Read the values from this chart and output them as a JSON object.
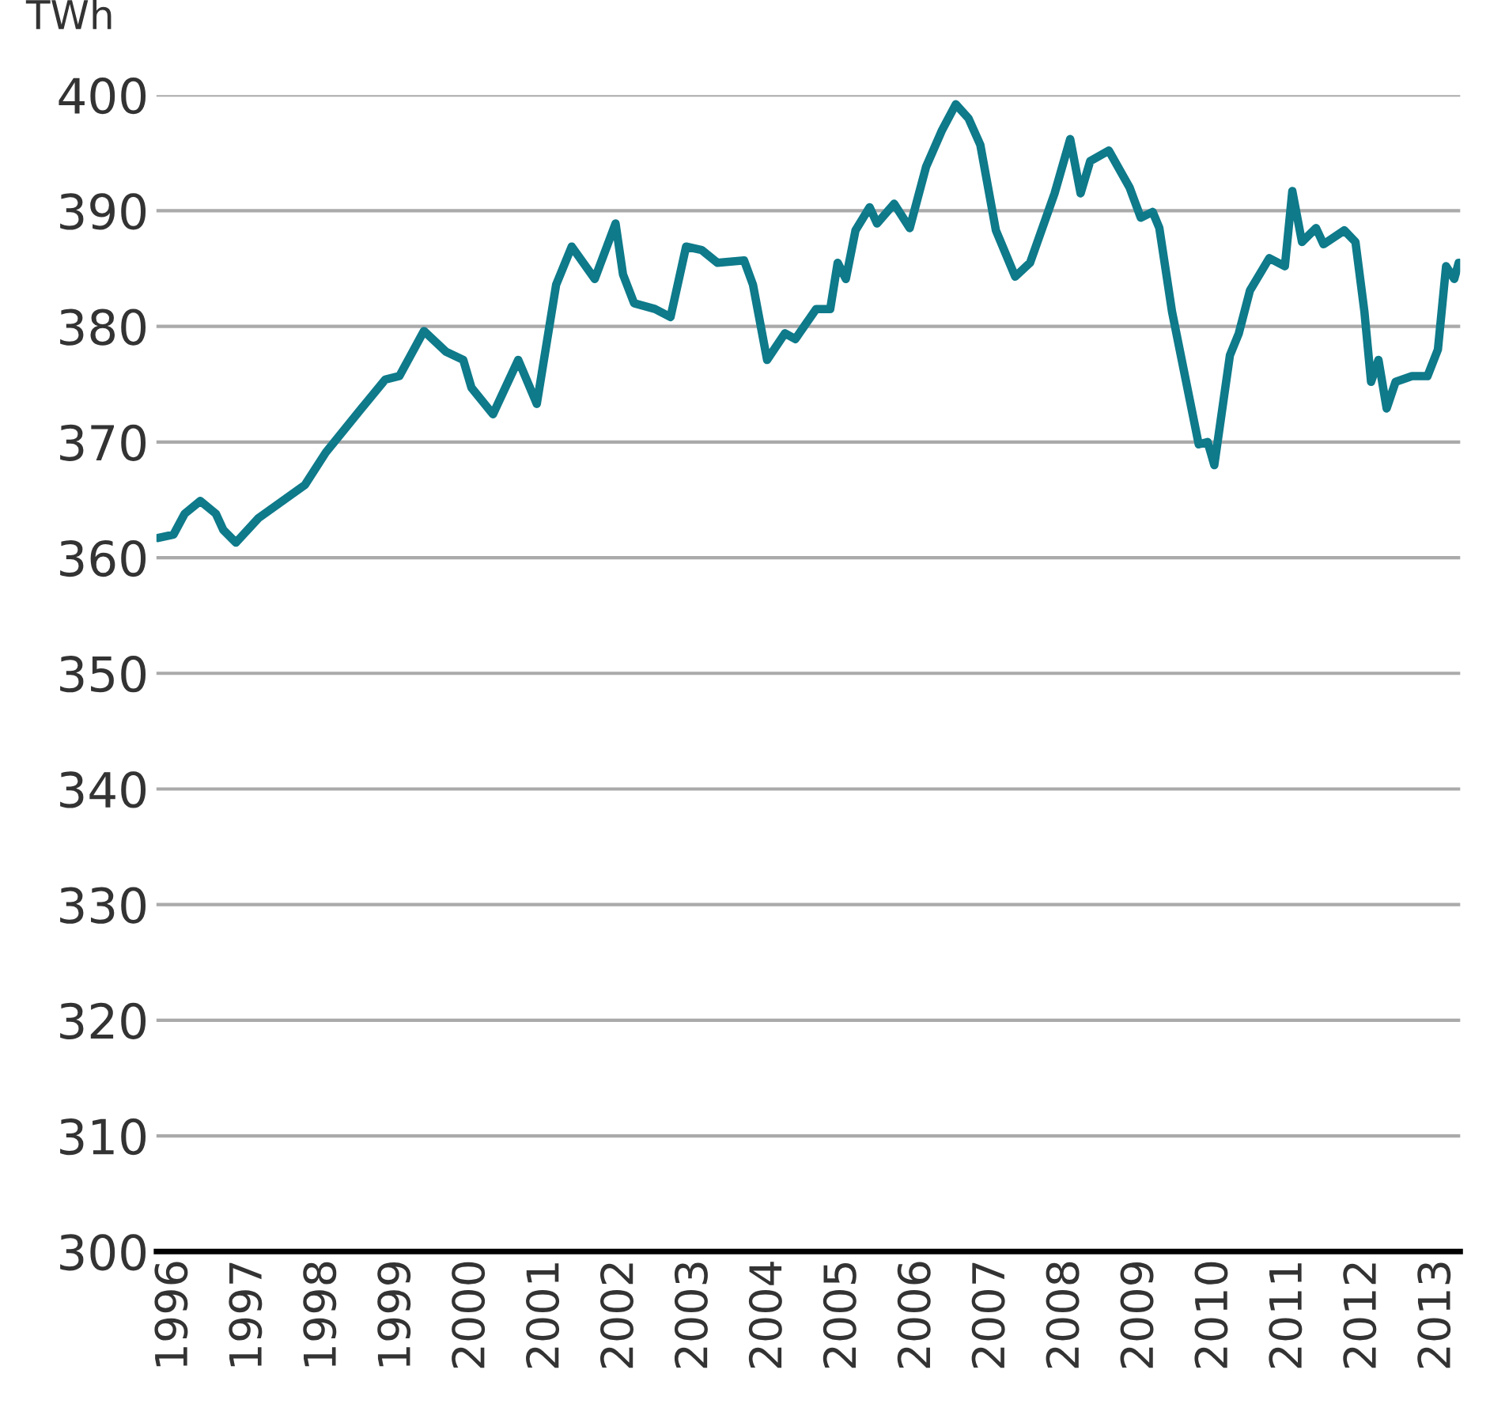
{
  "chart_data": {
    "type": "line",
    "ylabel": "TWh",
    "x": [
      1995.77,
      1995.98,
      1996.13,
      1996.34,
      1996.55,
      1996.65,
      1996.82,
      1997.12,
      1997.75,
      1998.03,
      1998.51,
      1998.83,
      1999.02,
      1999.35,
      1999.65,
      1999.88,
      1999.99,
      2000.28,
      2000.62,
      2000.87,
      2001.13,
      2001.34,
      2001.65,
      2001.93,
      2002.03,
      2002.18,
      2002.46,
      2002.67,
      2002.88,
      2003.09,
      2003.3,
      2003.66,
      2003.78,
      2003.97,
      2004.21,
      2004.35,
      2004.63,
      2004.82,
      2004.92,
      2005.03,
      2005.16,
      2005.35,
      2005.45,
      2005.68,
      2005.89,
      2006.11,
      2006.32,
      2006.51,
      2006.68,
      2006.84,
      2007.05,
      2007.31,
      2007.51,
      2007.84,
      2008.05,
      2008.19,
      2008.32,
      2008.57,
      2008.85,
      2009.0,
      2009.16,
      2009.25,
      2009.42,
      2009.78,
      2009.9,
      2009.99,
      2010.2,
      2010.32,
      2010.47,
      2010.73,
      2010.94,
      2011.04,
      2011.17,
      2011.36,
      2011.46,
      2011.74,
      2011.89,
      2012.01,
      2012.1,
      2012.2,
      2012.31,
      2012.43,
      2012.65,
      2012.86,
      2013.0,
      2013.11,
      2013.22,
      2013.28
    ],
    "series": [
      {
        "color": "#0e7a8a",
        "values": [
          361.7,
          362.0,
          363.8,
          364.9,
          363.8,
          362.4,
          361.3,
          363.4,
          366.3,
          369.1,
          372.9,
          375.4,
          375.7,
          379.6,
          377.8,
          377.1,
          374.7,
          372.4,
          377.1,
          373.3,
          383.6,
          386.9,
          384.1,
          388.9,
          384.5,
          382.0,
          381.5,
          380.8,
          386.9,
          386.6,
          385.5,
          385.7,
          383.6,
          377.1,
          379.4,
          378.9,
          381.5,
          381.5,
          385.5,
          384.1,
          388.3,
          390.3,
          388.9,
          390.6,
          388.5,
          393.8,
          396.9,
          399.2,
          398.0,
          395.7,
          388.3,
          384.3,
          385.5,
          391.5,
          396.2,
          391.5,
          394.3,
          395.2,
          392.0,
          389.4,
          389.9,
          388.5,
          381.3,
          369.8,
          370.0,
          368.0,
          377.5,
          379.4,
          383.1,
          385.9,
          385.2,
          391.7,
          387.3,
          388.5,
          387.1,
          388.3,
          387.3,
          381.3,
          375.2,
          377.1,
          372.9,
          375.2,
          375.7,
          375.7,
          378.0,
          385.2,
          384.1,
          385.5
        ]
      }
    ],
    "xlim": [
      1995.75,
      2013.3
    ],
    "xticks": [
      1996,
      1997,
      1998,
      1999,
      2000,
      2001,
      2002,
      2003,
      2004,
      2005,
      2006,
      2007,
      2008,
      2009,
      2010,
      2011,
      2012,
      2013
    ],
    "ylim": [
      300,
      400
    ],
    "yticks": [
      300,
      310,
      320,
      330,
      340,
      350,
      360,
      370,
      380,
      390,
      400
    ],
    "grid": "y",
    "line_style": "solid",
    "marker": "none"
  }
}
